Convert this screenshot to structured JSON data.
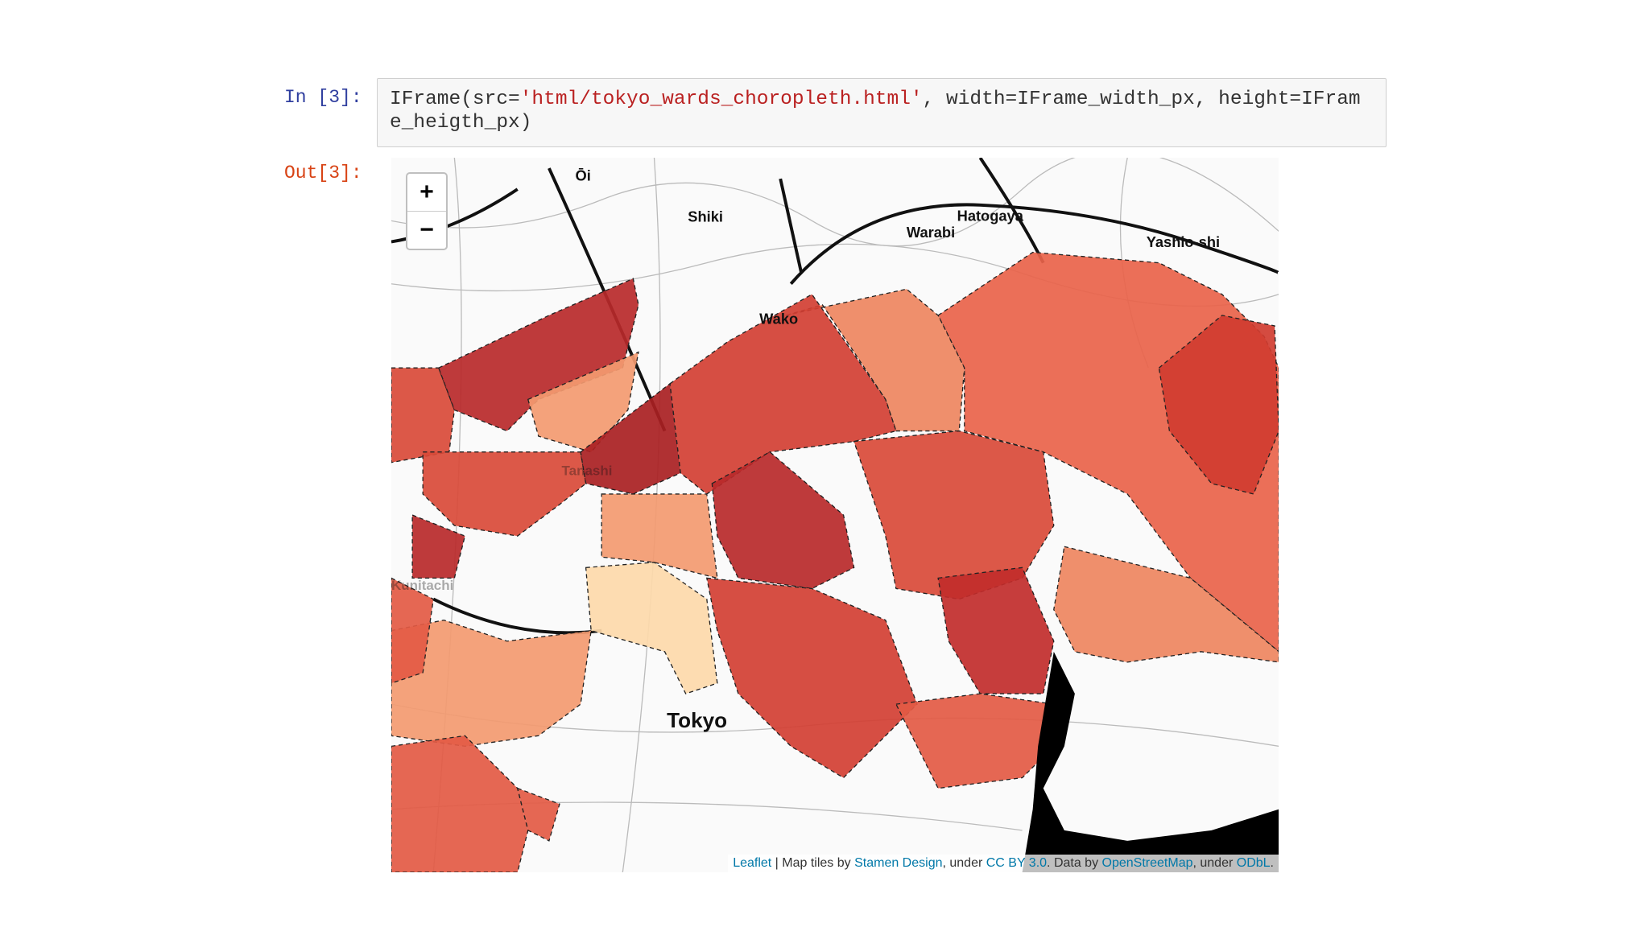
{
  "notebook": {
    "input_prompt": "In [3]:",
    "code": {
      "call": "IFrame(src=",
      "string": "'html/tokyo_wards_choropleth.html'",
      "rest": ", width=IFrame_width_px, height=IFrame_heigth_px)"
    },
    "output_prompt": "Out[3]:",
    "map": {
      "zoom_in": "+",
      "zoom_out": "−",
      "place_labels": [
        "Ōi",
        "Shiki",
        "Hatogaya",
        "Warabi",
        "Yashio-shi",
        "Wako",
        "Tanashi",
        "Kunitachi",
        "Tokyo"
      ],
      "attribution": [
        "Leaflet",
        " | Map tiles by ",
        "Stamen Design",
        ", under ",
        "CC BY 3.0",
        ". Data by ",
        "OpenStreetMap",
        ", under ",
        "ODbL",
        "."
      ]
    }
  }
}
